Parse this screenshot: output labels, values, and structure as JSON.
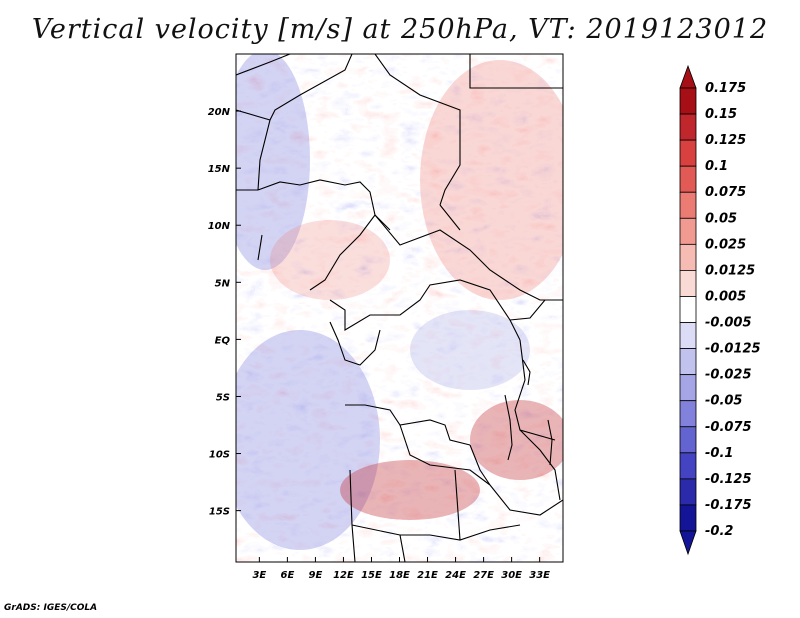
{
  "title": "Vertical velocity [m/s] at 250hPa, VT: 2019123012",
  "credit": "GrADS: IGES/COLA",
  "map": {
    "lon_labels": [
      "3E",
      "6E",
      "9E",
      "12E",
      "15E",
      "18E",
      "21E",
      "24E",
      "27E",
      "30E",
      "33E"
    ],
    "lat_labels": [
      "20N",
      "15N",
      "10N",
      "5N",
      "EQ",
      "5S",
      "10S",
      "15S"
    ],
    "lon_values": [
      3,
      6,
      9,
      12,
      15,
      18,
      21,
      24,
      27,
      30,
      33
    ],
    "lat_values": [
      20,
      15,
      10,
      5,
      0,
      -5,
      -10,
      -15
    ],
    "lon_range": [
      0.5,
      35.5
    ],
    "lat_range": [
      -19.5,
      25
    ]
  },
  "colorbar": {
    "upper_label": "0.175",
    "lower_label": "-0.2",
    "levels": [
      "0.15",
      "0.125",
      "0.1",
      "0.075",
      "0.05",
      "0.025",
      "0.0125",
      "0.005",
      "-0.005",
      "-0.0125",
      "-0.025",
      "-0.05",
      "-0.075",
      "-0.1",
      "-0.125",
      "-0.175"
    ],
    "colors": [
      "#a50f15",
      "#c0272d",
      "#d8413f",
      "#e25a55",
      "#eb7c74",
      "#f09a92",
      "#f6bcb4",
      "#fadad4",
      "#ffffff",
      "#dcdcf6",
      "#c2c2ef",
      "#a5a5e6",
      "#8282dc",
      "#6464d0",
      "#4444c2",
      "#2a2aaa",
      "#141496"
    ],
    "top_color": "#a50f15",
    "bottom_color": "#141496"
  }
}
